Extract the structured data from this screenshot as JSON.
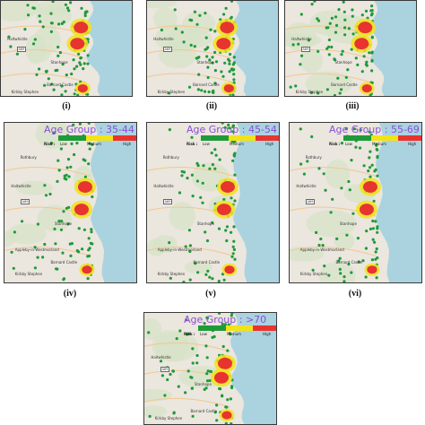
{
  "panels": [
    {
      "id": "i",
      "label": "(i)",
      "legend": null
    },
    {
      "id": "ii",
      "label": "(ii)",
      "legend": null
    },
    {
      "id": "iii",
      "label": "(iii)",
      "legend": null
    },
    {
      "id": "iv",
      "label": "(iv)",
      "legend": {
        "title": "Age Group : 35-44"
      }
    },
    {
      "id": "v",
      "label": "(v)",
      "legend": {
        "title": "Age Group : 45-54"
      }
    },
    {
      "id": "vi",
      "label": "(vi)",
      "legend": {
        "title": "Age Group : 55-69"
      }
    },
    {
      "id": "vii",
      "label": "",
      "legend": {
        "title": "Age Group : >70"
      }
    }
  ],
  "legend_common": {
    "risk": "Risk :",
    "low": "Low",
    "medium": "Medium",
    "high": "High"
  },
  "colors": {
    "low": "#1f9a3a",
    "medium": "#f2e21a",
    "high": "#e8342e",
    "sea": "#aad3df",
    "land": "#ebe6de"
  },
  "map_labels": {
    "haltwhistle": "Haltwhistle",
    "stanhope": "Stanhope",
    "appleby": "Appleby-in-Westmorland",
    "kirkby": "Kirkby Stephen",
    "barnard": "Barnard Castle",
    "rothbury": "Rothbury",
    "kelso": "Kelso",
    "a69": "A69",
    "a66": "A66",
    "a697": "A697"
  }
}
